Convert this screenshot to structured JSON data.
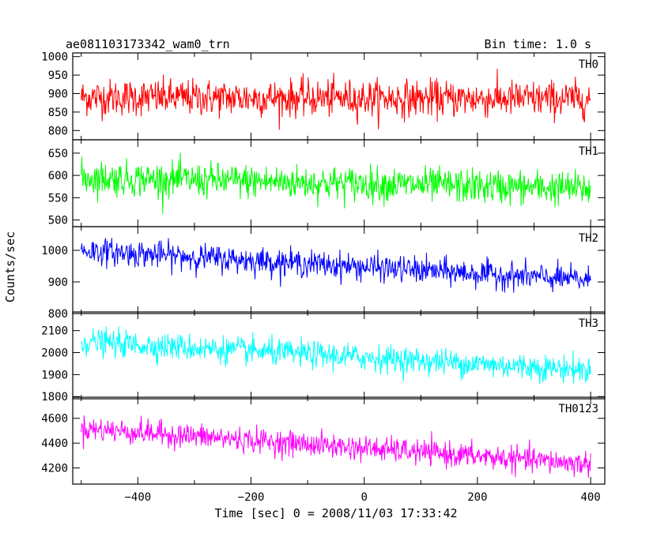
{
  "header": {
    "title": "ae081103173342_wam0_trn",
    "bin_time": "Bin time: 1.0 s"
  },
  "chart_data": {
    "type": "line",
    "xlabel": "Time [sec] 0 = 2008/11/03 17:33:42",
    "ylabel": "Counts/sec",
    "xlim": [
      -515,
      425
    ],
    "x_ticks": [
      -400,
      -200,
      0,
      200,
      400
    ],
    "x_data_range": [
      -500,
      400
    ],
    "panels": [
      {
        "name": "TH0",
        "color": "#ff0000",
        "ylim": [
          775,
          1010
        ],
        "yticks": [
          800,
          850,
          900,
          950,
          1000
        ],
        "trend": [
          [
            -500,
            890
          ],
          [
            400,
            885
          ]
        ],
        "noise": 45
      },
      {
        "name": "TH1",
        "color": "#00ff00",
        "ylim": [
          485,
          680
        ],
        "yticks": [
          500,
          550,
          600,
          650
        ],
        "trend": [
          [
            -500,
            595
          ],
          [
            400,
            570
          ]
        ],
        "noise": 35
      },
      {
        "name": "TH2",
        "color": "#0000ff",
        "ylim": [
          800,
          1075
        ],
        "yticks": [
          800,
          900,
          1000
        ],
        "trend": [
          [
            -500,
            1000
          ],
          [
            400,
            905
          ]
        ],
        "noise": 38
      },
      {
        "name": "TH3",
        "color": "#00ffff",
        "ylim": [
          1790,
          2185
        ],
        "yticks": [
          1800,
          1900,
          2000,
          2100
        ],
        "trend": [
          [
            -500,
            2050
          ],
          [
            400,
            1920
          ]
        ],
        "noise": 55
      },
      {
        "name": "TH0123",
        "color": "#ff00ff",
        "ylim": [
          4070,
          4770
        ],
        "yticks": [
          4200,
          4400,
          4600
        ],
        "trend": [
          [
            -500,
            4520
          ],
          [
            400,
            4230
          ]
        ],
        "noise": 90
      }
    ]
  }
}
